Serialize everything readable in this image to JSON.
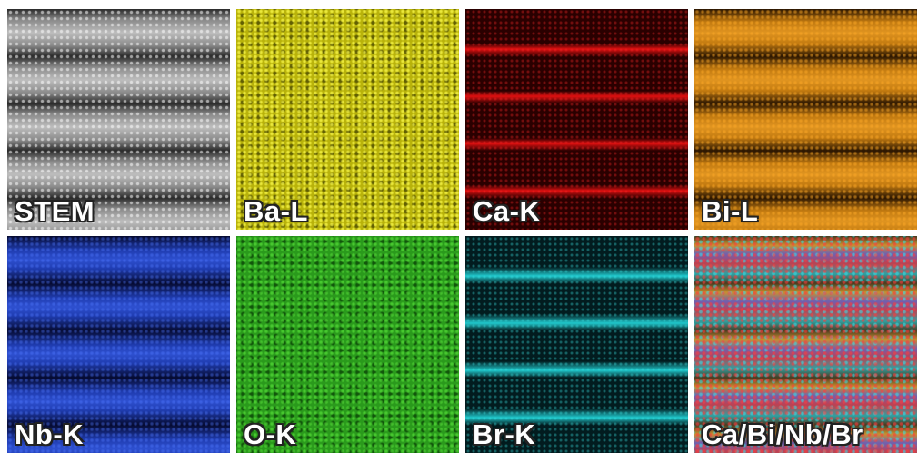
{
  "panels": [
    {
      "label": "STEM"
    },
    {
      "label": "Ba-L"
    },
    {
      "label": "Ca-K"
    },
    {
      "label": "Bi-L"
    },
    {
      "label": "Nb-K"
    },
    {
      "label": "O-K"
    },
    {
      "label": "Br-K"
    },
    {
      "label": "Ca/Bi/Nb/Br"
    }
  ]
}
